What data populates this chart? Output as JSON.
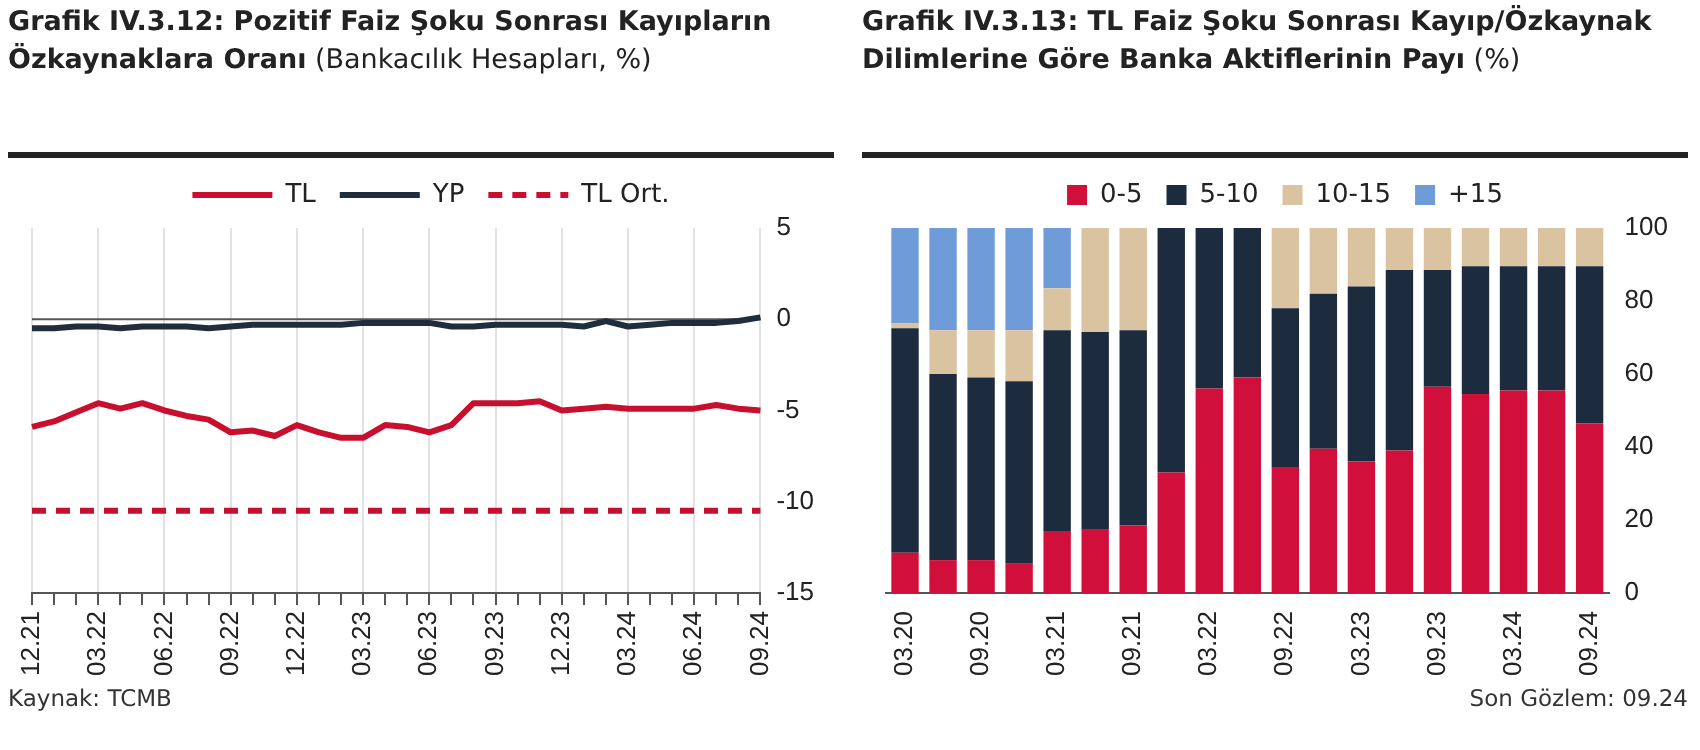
{
  "chart_data": [
    {
      "type": "line",
      "title": "Grafik IV.3.12: Pozitif Faiz Şoku Sonrası Kayıpların Özkaynaklara Oranı",
      "subtitle": "(Bankacılık Hesapları, %)",
      "categories": [
        "12.21",
        null,
        null,
        "03.22",
        null,
        null,
        "06.22",
        null,
        null,
        "09.22",
        null,
        null,
        "12.22",
        null,
        null,
        "03.23",
        null,
        null,
        "06.23",
        null,
        null,
        "09.23",
        null,
        null,
        "12.23",
        null,
        null,
        "03.24",
        null,
        null,
        "06.24",
        null,
        null,
        "09.24"
      ],
      "series": [
        {
          "name": "TL",
          "color": "#c8102e",
          "line_style": "solid",
          "values": [
            -5.9,
            -5.6,
            -5.1,
            -4.6,
            -4.9,
            -4.6,
            -5.0,
            -5.3,
            -5.5,
            -6.2,
            -6.1,
            -6.4,
            -5.8,
            -6.2,
            -6.5,
            -6.5,
            -5.8,
            -5.9,
            -6.2,
            -5.8,
            -4.6,
            -4.6,
            -4.6,
            -4.5,
            -5.0,
            -4.9,
            -4.8,
            -4.9,
            -4.9,
            -4.9,
            -4.9,
            -4.7,
            -4.9,
            -5.0
          ]
        },
        {
          "name": "YP",
          "color": "#1f2d3d",
          "line_style": "solid",
          "values": [
            -0.5,
            -0.5,
            -0.4,
            -0.4,
            -0.5,
            -0.4,
            -0.4,
            -0.4,
            -0.5,
            -0.4,
            -0.3,
            -0.3,
            -0.3,
            -0.3,
            -0.3,
            -0.2,
            -0.2,
            -0.2,
            -0.2,
            -0.4,
            -0.4,
            -0.3,
            -0.3,
            -0.3,
            -0.3,
            -0.4,
            -0.1,
            -0.4,
            -0.3,
            -0.2,
            -0.2,
            -0.2,
            -0.1,
            0.1
          ]
        },
        {
          "name": "TL Ort.",
          "color": "#c8102e",
          "line_style": "dashed",
          "values": [
            -10.5,
            -10.5,
            -10.5,
            -10.5,
            -10.5,
            -10.5,
            -10.5,
            -10.5,
            -10.5,
            -10.5,
            -10.5,
            -10.5,
            -10.5,
            -10.5,
            -10.5,
            -10.5,
            -10.5,
            -10.5,
            -10.5,
            -10.5,
            -10.5,
            -10.5,
            -10.5,
            -10.5,
            -10.5,
            -10.5,
            -10.5,
            -10.5,
            -10.5,
            -10.5,
            -10.5,
            -10.5,
            -10.5,
            -10.5
          ]
        }
      ],
      "ylim": [
        -15,
        5
      ],
      "yticks": [
        5,
        0,
        -5,
        -10,
        -15
      ],
      "grid": "x",
      "legend": "top",
      "marker": "none",
      "annotations": [
        "Kaynak: TCMB"
      ]
    },
    {
      "type": "bar",
      "stacked": true,
      "title": "Grafik IV.3.13:  TL Faiz Şoku Sonrası Kayıp/Özkaynak Dilimlerine Göre Banka Aktiflerinin Payı",
      "subtitle": "(%)",
      "categories": [
        "03.20",
        null,
        "09.20",
        null,
        "03.21",
        null,
        "09.21",
        null,
        "03.22",
        null,
        "09.22",
        null,
        "03.23",
        null,
        "09.23",
        null,
        "03.24",
        null,
        "09.24"
      ],
      "series": [
        {
          "name": "0-5",
          "color": "#d0103a",
          "values": [
            11,
            9,
            9,
            8,
            17,
            17.5,
            18.5,
            33,
            56,
            59,
            34.5,
            39.5,
            36,
            39,
            56.5,
            54.5,
            55.5,
            55.5,
            46.5
          ]
        },
        {
          "name": "5-10",
          "color": "#1c2b3e",
          "values": [
            61.5,
            51,
            50,
            50,
            55,
            54,
            53.5,
            67,
            44,
            41,
            43.5,
            42.5,
            48,
            49.5,
            32,
            35,
            34,
            34,
            43
          ]
        },
        {
          "name": "10-15",
          "color": "#d9c3a0",
          "values": [
            1.5,
            12,
            13,
            14,
            11.5,
            28.5,
            28,
            0,
            0,
            0,
            22,
            18,
            16,
            11.5,
            11.5,
            10.5,
            10.5,
            10.5,
            10.5
          ]
        },
        {
          "name": "+15",
          "color": "#6f9bd8",
          "values": [
            26,
            28,
            28,
            28,
            16.5,
            0,
            0,
            0,
            0,
            0,
            0,
            0,
            0,
            0,
            0,
            0,
            0,
            0,
            0
          ]
        }
      ],
      "ylim": [
        0,
        100
      ],
      "yticks": [
        0,
        20,
        40,
        60,
        80,
        100
      ],
      "grid": false,
      "legend": "top",
      "annotations": [
        "Son Gözlem: 09.24"
      ]
    }
  ]
}
